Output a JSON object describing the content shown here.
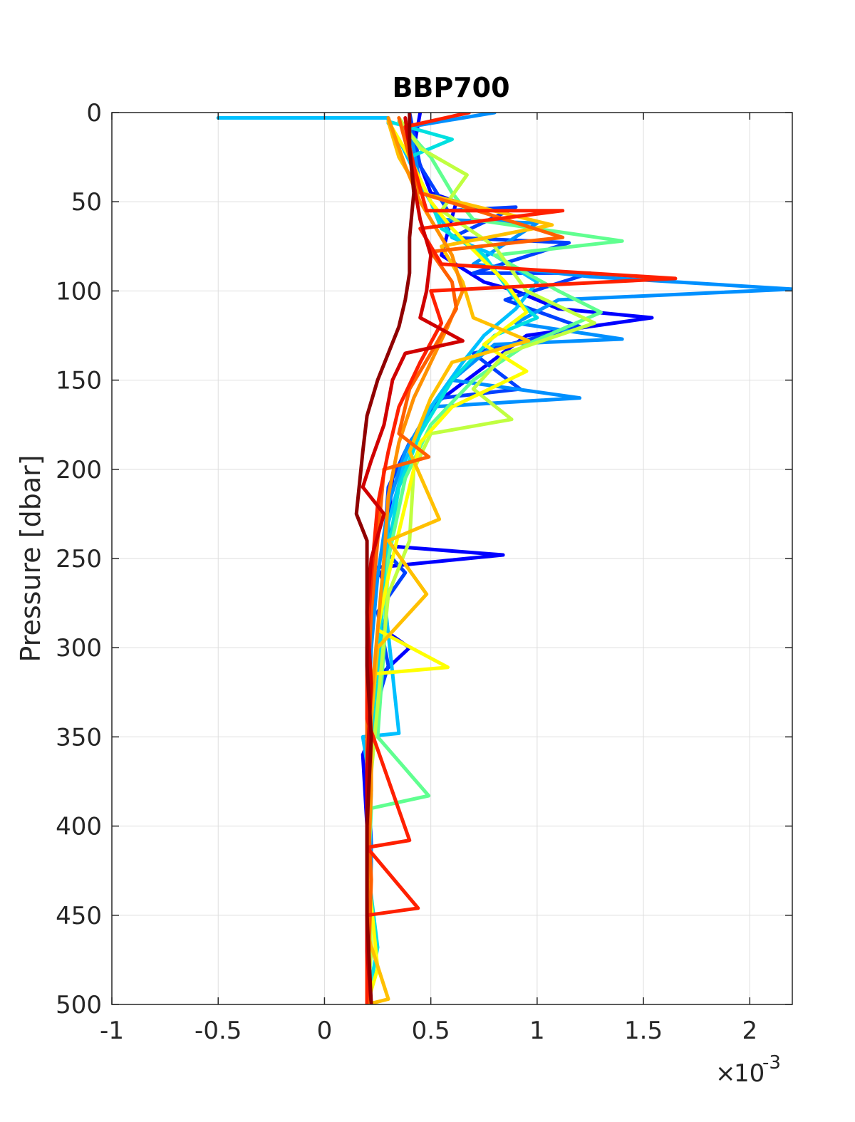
{
  "chart_data": {
    "type": "line",
    "title": "BBP700",
    "ylabel": "Pressure [dbar]",
    "xlabel": "",
    "x_exponent_base": "10",
    "x_exponent_power": "-3",
    "xlim": [
      -1,
      2.2
    ],
    "ylim": [
      0,
      500
    ],
    "y_reversed": true,
    "grid": true,
    "x_ticks": [
      -1,
      -0.5,
      0,
      0.5,
      1,
      1.5,
      2
    ],
    "x_tick_labels": [
      "-1",
      "-0.5",
      "0",
      "0.5",
      "1",
      "1.5",
      "2"
    ],
    "y_ticks": [
      0,
      50,
      100,
      150,
      200,
      250,
      300,
      350,
      400,
      450,
      500
    ],
    "y_tick_labels": [
      "0",
      "50",
      "100",
      "150",
      "200",
      "250",
      "300",
      "350",
      "400",
      "450",
      "500"
    ],
    "colormap": "jet",
    "series": [
      {
        "color": "#0000ff",
        "points": [
          [
            0.45,
            0
          ],
          [
            0.42,
            20
          ],
          [
            0.5,
            45
          ],
          [
            0.62,
            50
          ],
          [
            0.55,
            80
          ],
          [
            0.75,
            95
          ],
          [
            0.9,
            100
          ],
          [
            1.1,
            110
          ],
          [
            1.54,
            115
          ],
          [
            0.95,
            125
          ],
          [
            0.78,
            140
          ],
          [
            0.5,
            165
          ],
          [
            0.38,
            190
          ],
          [
            0.32,
            205
          ],
          [
            0.3,
            230
          ],
          [
            0.3,
            243
          ],
          [
            0.84,
            248
          ],
          [
            0.25,
            255
          ],
          [
            0.3,
            270
          ],
          [
            0.28,
            290
          ],
          [
            0.4,
            300
          ],
          [
            0.22,
            320
          ],
          [
            0.25,
            340
          ],
          [
            0.18,
            360
          ],
          [
            0.2,
            400
          ],
          [
            0.2,
            450
          ],
          [
            0.2,
            500
          ]
        ]
      },
      {
        "color": "#0040ff",
        "points": [
          [
            0.4,
            0
          ],
          [
            0.45,
            30
          ],
          [
            0.58,
            55
          ],
          [
            0.9,
            53
          ],
          [
            0.6,
            70
          ],
          [
            1.15,
            73
          ],
          [
            0.7,
            90
          ],
          [
            1.25,
            90
          ],
          [
            0.85,
            105
          ],
          [
            1.2,
            120
          ],
          [
            0.7,
            135
          ],
          [
            0.92,
            155
          ],
          [
            0.55,
            160
          ],
          [
            0.4,
            185
          ],
          [
            0.3,
            210
          ],
          [
            0.28,
            245
          ],
          [
            0.38,
            258
          ],
          [
            0.25,
            280
          ],
          [
            0.3,
            310
          ],
          [
            0.27,
            322
          ],
          [
            0.2,
            360
          ],
          [
            0.22,
            410
          ],
          [
            0.21,
            460
          ],
          [
            0.2,
            500
          ]
        ]
      },
      {
        "color": "#0090ff",
        "points": [
          [
            0.8,
            0
          ],
          [
            0.4,
            8
          ],
          [
            0.45,
            40
          ],
          [
            0.55,
            60
          ],
          [
            1.0,
            62
          ],
          [
            0.7,
            85
          ],
          [
            1.25,
            92
          ],
          [
            2.2,
            99
          ],
          [
            1.1,
            105
          ],
          [
            0.9,
            118
          ],
          [
            1.4,
            127
          ],
          [
            0.8,
            130
          ],
          [
            0.6,
            150
          ],
          [
            1.2,
            160
          ],
          [
            0.5,
            165
          ],
          [
            0.38,
            190
          ],
          [
            0.3,
            220
          ],
          [
            0.25,
            260
          ],
          [
            0.22,
            300
          ],
          [
            0.2,
            350
          ],
          [
            0.22,
            420
          ],
          [
            0.2,
            500
          ]
        ]
      },
      {
        "color": "#00c0ff",
        "points": [
          [
            -0.5,
            3
          ],
          [
            0.3,
            3
          ],
          [
            0.3,
            6
          ],
          [
            0.35,
            15
          ],
          [
            0.45,
            40
          ],
          [
            0.6,
            70
          ],
          [
            0.8,
            80
          ],
          [
            1.0,
            95
          ],
          [
            0.9,
            110
          ],
          [
            0.75,
            125
          ],
          [
            0.65,
            140
          ],
          [
            0.5,
            165
          ],
          [
            0.38,
            195
          ],
          [
            0.3,
            230
          ],
          [
            0.28,
            270
          ],
          [
            0.35,
            348
          ],
          [
            0.18,
            350
          ],
          [
            0.22,
            380
          ],
          [
            0.2,
            440
          ],
          [
            0.22,
            470
          ],
          [
            0.2,
            500
          ]
        ]
      },
      {
        "color": "#00e0e0",
        "points": [
          [
            0.3,
            5
          ],
          [
            0.6,
            15
          ],
          [
            0.4,
            25
          ],
          [
            0.5,
            50
          ],
          [
            0.55,
            65
          ],
          [
            0.75,
            80
          ],
          [
            0.9,
            105
          ],
          [
            1.0,
            115
          ],
          [
            0.8,
            125
          ],
          [
            0.6,
            150
          ],
          [
            0.45,
            180
          ],
          [
            0.35,
            210
          ],
          [
            0.28,
            260
          ],
          [
            0.25,
            320
          ],
          [
            0.22,
            360
          ],
          [
            0.2,
            420
          ],
          [
            0.25,
            468
          ],
          [
            0.2,
            500
          ]
        ]
      },
      {
        "color": "#60ff90",
        "points": [
          [
            0.35,
            5
          ],
          [
            0.5,
            25
          ],
          [
            0.6,
            45
          ],
          [
            0.7,
            60
          ],
          [
            1.4,
            72
          ],
          [
            0.8,
            80
          ],
          [
            1.1,
            100
          ],
          [
            1.3,
            112
          ],
          [
            0.95,
            130
          ],
          [
            0.7,
            150
          ],
          [
            0.5,
            175
          ],
          [
            0.38,
            205
          ],
          [
            0.3,
            250
          ],
          [
            0.28,
            300
          ],
          [
            0.25,
            350
          ],
          [
            0.49,
            383
          ],
          [
            0.22,
            390
          ],
          [
            0.2,
            440
          ],
          [
            0.2,
            500
          ]
        ]
      },
      {
        "color": "#c0ff40",
        "points": [
          [
            0.35,
            3
          ],
          [
            0.45,
            20
          ],
          [
            0.67,
            35
          ],
          [
            0.55,
            55
          ],
          [
            0.8,
            75
          ],
          [
            0.95,
            100
          ],
          [
            1.27,
            118
          ],
          [
            0.85,
            135
          ],
          [
            0.7,
            155
          ],
          [
            0.88,
            172
          ],
          [
            0.5,
            180
          ],
          [
            0.42,
            200
          ],
          [
            0.4,
            240
          ],
          [
            0.3,
            270
          ],
          [
            0.26,
            320
          ],
          [
            0.22,
            370
          ],
          [
            0.2,
            420
          ],
          [
            0.22,
            470
          ],
          [
            0.2,
            500
          ]
        ]
      },
      {
        "color": "#ffff00",
        "points": [
          [
            0.3,
            5
          ],
          [
            0.4,
            25
          ],
          [
            0.5,
            50
          ],
          [
            0.6,
            65
          ],
          [
            0.85,
            95
          ],
          [
            0.95,
            112
          ],
          [
            0.75,
            130
          ],
          [
            0.95,
            145
          ],
          [
            0.6,
            165
          ],
          [
            0.45,
            185
          ],
          [
            0.38,
            220
          ],
          [
            0.3,
            260
          ],
          [
            0.25,
            290
          ],
          [
            0.58,
            311
          ],
          [
            0.2,
            315
          ],
          [
            0.22,
            360
          ],
          [
            0.2,
            420
          ],
          [
            0.25,
            480
          ],
          [
            0.2,
            500
          ]
        ]
      },
      {
        "color": "#ffc000",
        "points": [
          [
            0.3,
            5
          ],
          [
            0.35,
            25
          ],
          [
            0.45,
            45
          ],
          [
            1.07,
            63
          ],
          [
            0.55,
            75
          ],
          [
            0.65,
            95
          ],
          [
            0.7,
            115
          ],
          [
            0.96,
            128
          ],
          [
            0.6,
            140
          ],
          [
            0.5,
            160
          ],
          [
            0.4,
            190
          ],
          [
            0.54,
            228
          ],
          [
            0.3,
            240
          ],
          [
            0.48,
            270
          ],
          [
            0.25,
            300
          ],
          [
            0.22,
            340
          ],
          [
            0.2,
            400
          ],
          [
            0.2,
            460
          ],
          [
            0.3,
            497
          ],
          [
            0.2,
            500
          ]
        ]
      },
      {
        "color": "#ff9000",
        "points": [
          [
            0.3,
            3
          ],
          [
            0.38,
            30
          ],
          [
            0.45,
            50
          ],
          [
            0.6,
            80
          ],
          [
            0.65,
            100
          ],
          [
            0.58,
            120
          ],
          [
            0.5,
            140
          ],
          [
            0.42,
            160
          ],
          [
            0.35,
            185
          ],
          [
            0.3,
            215
          ],
          [
            0.28,
            250
          ],
          [
            0.25,
            290
          ],
          [
            0.22,
            330
          ],
          [
            0.22,
            380
          ],
          [
            0.2,
            440
          ],
          [
            0.2,
            500
          ]
        ]
      },
      {
        "color": "#ff6000",
        "points": [
          [
            0.35,
            3
          ],
          [
            0.4,
            25
          ],
          [
            0.45,
            45
          ],
          [
            1.12,
            70
          ],
          [
            0.5,
            78
          ],
          [
            0.6,
            95
          ],
          [
            0.62,
            110
          ],
          [
            0.5,
            135
          ],
          [
            0.4,
            155
          ],
          [
            0.35,
            180
          ],
          [
            0.49,
            193
          ],
          [
            0.28,
            200
          ],
          [
            0.25,
            240
          ],
          [
            0.22,
            280
          ],
          [
            0.2,
            330
          ],
          [
            0.2,
            380
          ],
          [
            0.22,
            430
          ],
          [
            0.2,
            500
          ]
        ]
      },
      {
        "color": "#ff2000",
        "points": [
          [
            0.68,
            0
          ],
          [
            0.38,
            8
          ],
          [
            0.42,
            30
          ],
          [
            0.48,
            55
          ],
          [
            1.12,
            55
          ],
          [
            0.45,
            65
          ],
          [
            0.55,
            85
          ],
          [
            1.65,
            93
          ],
          [
            0.5,
            100
          ],
          [
            0.55,
            118
          ],
          [
            0.45,
            140
          ],
          [
            0.35,
            165
          ],
          [
            0.3,
            190
          ],
          [
            0.25,
            220
          ],
          [
            0.22,
            260
          ],
          [
            0.2,
            300
          ],
          [
            0.2,
            340
          ],
          [
            0.4,
            408
          ],
          [
            0.2,
            412
          ],
          [
            0.44,
            446
          ],
          [
            0.2,
            450
          ],
          [
            0.2,
            500
          ]
        ]
      },
      {
        "color": "#d00000",
        "points": [
          [
            0.38,
            3
          ],
          [
            0.4,
            20
          ],
          [
            0.42,
            40
          ],
          [
            0.45,
            60
          ],
          [
            0.5,
            80
          ],
          [
            0.48,
            100
          ],
          [
            0.45,
            115
          ],
          [
            0.65,
            128
          ],
          [
            0.38,
            135
          ],
          [
            0.32,
            150
          ],
          [
            0.28,
            175
          ],
          [
            0.22,
            195
          ],
          [
            0.18,
            210
          ],
          [
            0.28,
            225
          ],
          [
            0.22,
            250
          ],
          [
            0.2,
            280
          ],
          [
            0.22,
            320
          ],
          [
            0.2,
            370
          ],
          [
            0.2,
            410
          ],
          [
            0.2,
            470
          ],
          [
            0.22,
            500
          ]
        ]
      },
      {
        "color": "#900000",
        "points": [
          [
            0.4,
            0
          ],
          [
            0.4,
            20
          ],
          [
            0.42,
            45
          ],
          [
            0.4,
            70
          ],
          [
            0.4,
            90
          ],
          [
            0.38,
            105
          ],
          [
            0.35,
            120
          ],
          [
            0.3,
            135
          ],
          [
            0.25,
            150
          ],
          [
            0.2,
            170
          ],
          [
            0.18,
            190
          ],
          [
            0.15,
            225
          ],
          [
            0.2,
            240
          ],
          [
            0.2,
            270
          ],
          [
            0.2,
            310
          ],
          [
            0.22,
            350
          ],
          [
            0.2,
            400
          ],
          [
            0.2,
            450
          ],
          [
            0.22,
            500
          ]
        ]
      }
    ]
  }
}
